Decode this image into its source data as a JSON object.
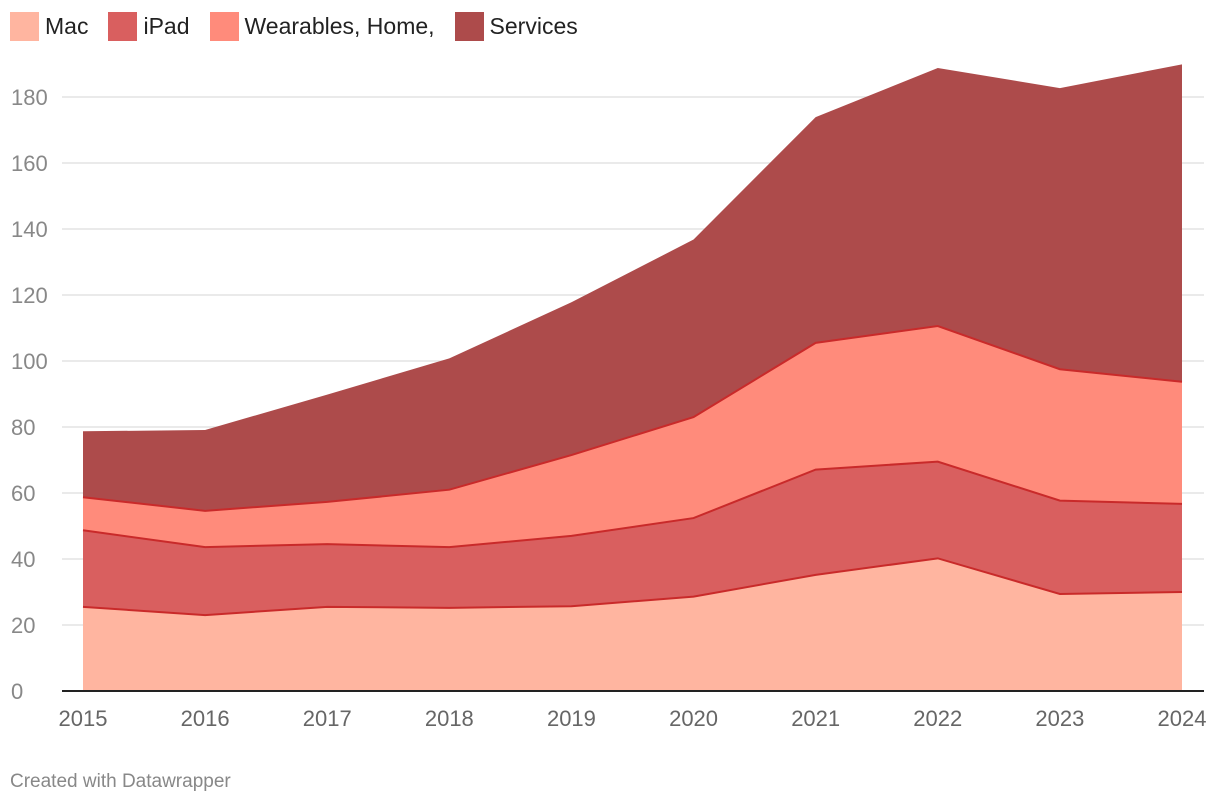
{
  "chart_data": {
    "type": "area",
    "stacked": true,
    "categories": [
      "2015",
      "2016",
      "2017",
      "2018",
      "2019",
      "2020",
      "2021",
      "2022",
      "2023",
      "2024"
    ],
    "series": [
      {
        "name": "Mac",
        "color": "#ffb5a0",
        "values": [
          25.5,
          23,
          25.5,
          25.2,
          25.7,
          28.6,
          35.2,
          40.2,
          29.4,
          30
        ]
      },
      {
        "name": "iPad",
        "color": "#d95f5f",
        "values": [
          23.2,
          20.6,
          19,
          18.4,
          21.3,
          23.8,
          31.9,
          29.3,
          28.3,
          26.7
        ]
      },
      {
        "name": "Wearables, Home,",
        "color": "#ff8b7b",
        "values": [
          10,
          11,
          12.8,
          17.4,
          24.5,
          30.6,
          38.4,
          41.1,
          39.8,
          37
        ]
      },
      {
        "name": "Services",
        "color": "#ad4b4b",
        "values": [
          20,
          24.5,
          32.5,
          39.8,
          46.3,
          53.8,
          68.4,
          78.2,
          85.2,
          96.2
        ]
      }
    ],
    "yticks": [
      0,
      20,
      40,
      60,
      80,
      100,
      120,
      140,
      160,
      180
    ],
    "ylim": [
      0,
      190
    ],
    "title": "",
    "xlabel": "",
    "ylabel": "",
    "legend": "top-left",
    "grid": true
  },
  "credit": "Created with Datawrapper"
}
